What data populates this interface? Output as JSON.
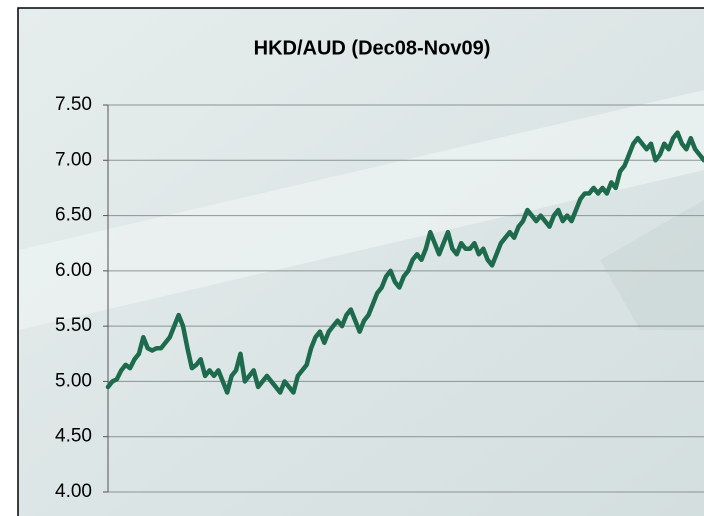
{
  "chart_data": {
    "type": "line",
    "title": "HKD/AUD (Dec08-Nov09)",
    "series": [
      {
        "color": "#1d6b4c",
        "values": [
          4.95,
          5.0,
          5.02,
          5.1,
          5.15,
          5.12,
          5.2,
          5.25,
          5.4,
          5.3,
          5.28,
          5.3,
          5.3,
          5.35,
          5.4,
          5.5,
          5.6,
          5.5,
          5.3,
          5.12,
          5.15,
          5.2,
          5.05,
          5.1,
          5.05,
          5.1,
          5.0,
          4.9,
          5.05,
          5.1,
          5.25,
          5.0,
          5.05,
          5.1,
          4.95,
          5.0,
          5.05,
          5.0,
          4.95,
          4.9,
          5.0,
          4.95,
          4.9,
          5.05,
          5.1,
          5.15,
          5.3,
          5.4,
          5.45,
          5.35,
          5.45,
          5.5,
          5.55,
          5.5,
          5.6,
          5.65,
          5.55,
          5.45,
          5.55,
          5.6,
          5.7,
          5.8,
          5.85,
          5.95,
          6.0,
          5.9,
          5.85,
          5.95,
          6.0,
          6.1,
          6.15,
          6.1,
          6.2,
          6.35,
          6.25,
          6.15,
          6.25,
          6.35,
          6.2,
          6.15,
          6.25,
          6.2,
          6.2,
          6.25,
          6.15,
          6.2,
          6.1,
          6.05,
          6.15,
          6.25,
          6.3,
          6.35,
          6.3,
          6.4,
          6.45,
          6.55,
          6.5,
          6.45,
          6.5,
          6.45,
          6.4,
          6.5,
          6.55,
          6.45,
          6.5,
          6.45,
          6.55,
          6.65,
          6.7,
          6.7,
          6.75,
          6.7,
          6.75,
          6.7,
          6.8,
          6.75,
          6.9,
          6.95,
          7.05,
          7.15,
          7.2,
          7.15,
          7.1,
          7.15,
          7.0,
          7.05,
          7.15,
          7.1,
          7.2,
          7.25,
          7.15,
          7.1,
          7.2,
          7.1,
          7.05,
          7.0
        ]
      }
    ],
    "ylim": [
      4.0,
      7.5
    ],
    "yticks": [
      {
        "value": 4.0,
        "label": "4.00"
      },
      {
        "value": 4.5,
        "label": "4.50"
      },
      {
        "value": 5.0,
        "label": "5.00"
      },
      {
        "value": 5.5,
        "label": "5.50"
      },
      {
        "value": 6.0,
        "label": "6.00"
      },
      {
        "value": 6.5,
        "label": "6.50"
      },
      {
        "value": 7.0,
        "label": "7.00"
      },
      {
        "value": 7.5,
        "label": "7.50"
      }
    ],
    "grid": true
  }
}
